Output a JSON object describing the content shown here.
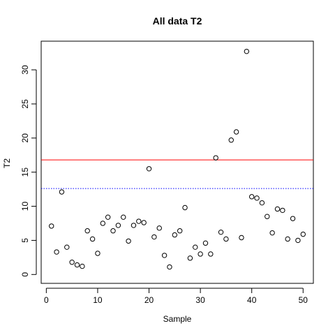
{
  "chart_data": {
    "type": "scatter",
    "title": "All data T2",
    "xlabel": "Sample",
    "ylabel": "T2",
    "xlim": [
      -1,
      52
    ],
    "ylim": [
      -1.3,
      34.2
    ],
    "xticks": [
      0,
      10,
      20,
      30,
      40,
      50
    ],
    "yticks": [
      0,
      5,
      10,
      15,
      20,
      25,
      30
    ],
    "grid": false,
    "marker": "open-circle",
    "points": [
      {
        "x": 1,
        "y": 7.1
      },
      {
        "x": 2,
        "y": 3.3
      },
      {
        "x": 3,
        "y": 12.1
      },
      {
        "x": 4,
        "y": 4.0
      },
      {
        "x": 5,
        "y": 1.8
      },
      {
        "x": 6,
        "y": 1.4
      },
      {
        "x": 7,
        "y": 1.2
      },
      {
        "x": 8,
        "y": 6.4
      },
      {
        "x": 9,
        "y": 5.2
      },
      {
        "x": 10,
        "y": 3.1
      },
      {
        "x": 11,
        "y": 7.5
      },
      {
        "x": 12,
        "y": 8.4
      },
      {
        "x": 13,
        "y": 6.4
      },
      {
        "x": 14,
        "y": 7.2
      },
      {
        "x": 15,
        "y": 8.4
      },
      {
        "x": 16,
        "y": 4.9
      },
      {
        "x": 17,
        "y": 7.2
      },
      {
        "x": 18,
        "y": 7.8
      },
      {
        "x": 19,
        "y": 7.6
      },
      {
        "x": 20,
        "y": 15.5
      },
      {
        "x": 21,
        "y": 5.5
      },
      {
        "x": 22,
        "y": 6.8
      },
      {
        "x": 23,
        "y": 2.8
      },
      {
        "x": 24,
        "y": 1.1
      },
      {
        "x": 25,
        "y": 5.8
      },
      {
        "x": 26,
        "y": 6.4
      },
      {
        "x": 27,
        "y": 9.8
      },
      {
        "x": 28,
        "y": 2.4
      },
      {
        "x": 29,
        "y": 4.0
      },
      {
        "x": 30,
        "y": 3.0
      },
      {
        "x": 31,
        "y": 4.6
      },
      {
        "x": 32,
        "y": 3.0
      },
      {
        "x": 33,
        "y": 17.1
      },
      {
        "x": 34,
        "y": 6.2
      },
      {
        "x": 35,
        "y": 5.2
      },
      {
        "x": 36,
        "y": 19.7
      },
      {
        "x": 37,
        "y": 20.9
      },
      {
        "x": 38,
        "y": 5.4
      },
      {
        "x": 39,
        "y": 32.7
      },
      {
        "x": 40,
        "y": 11.4
      },
      {
        "x": 41,
        "y": 11.2
      },
      {
        "x": 42,
        "y": 10.5
      },
      {
        "x": 43,
        "y": 8.5
      },
      {
        "x": 44,
        "y": 6.1
      },
      {
        "x": 45,
        "y": 9.6
      },
      {
        "x": 46,
        "y": 9.4
      },
      {
        "x": 47,
        "y": 5.2
      },
      {
        "x": 48,
        "y": 8.2
      },
      {
        "x": 49,
        "y": 5.0
      },
      {
        "x": 50,
        "y": 5.9
      }
    ],
    "reference_lines": [
      {
        "y": 16.8,
        "color": "#ff0000",
        "style": "solid"
      },
      {
        "y": 12.6,
        "color": "#0000ff",
        "style": "dotted"
      }
    ]
  }
}
